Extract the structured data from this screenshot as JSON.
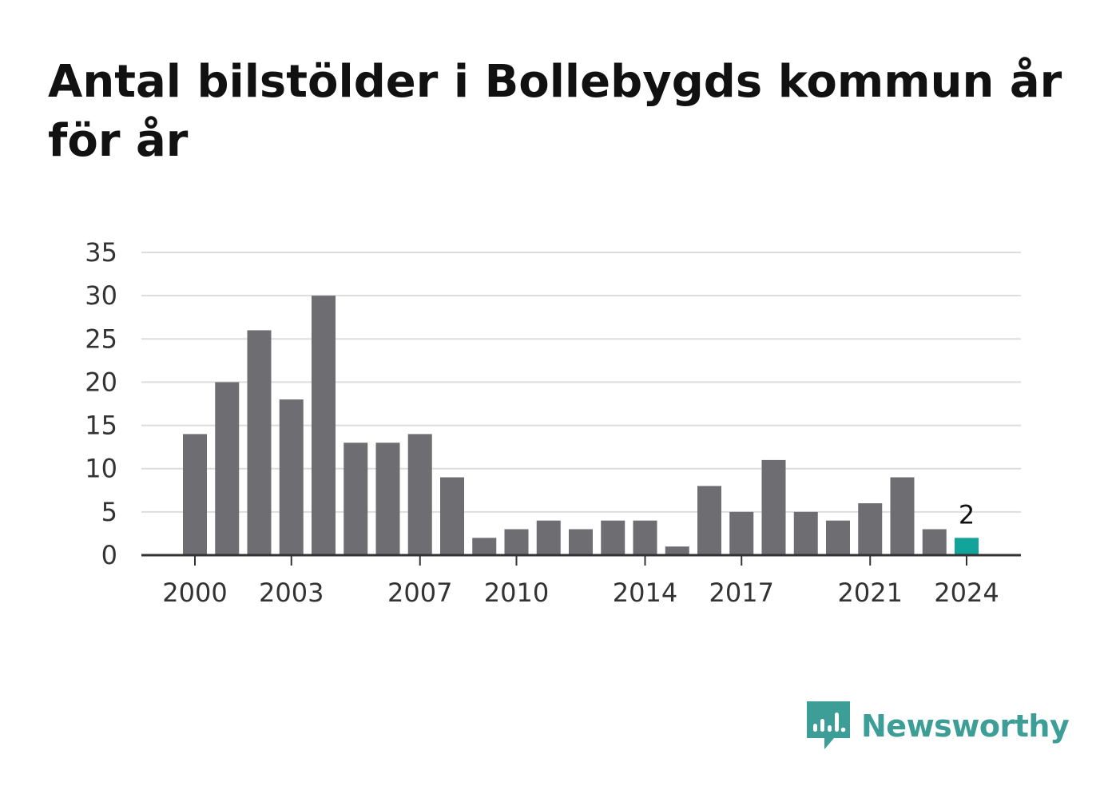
{
  "title": "Antal bilstölder i Bollebygds kommun år för år",
  "brand": {
    "name": "Newsworthy",
    "icon": "newsworthy-logo-icon",
    "color": "#3d9d97"
  },
  "colors": {
    "bar": "#6e6d72",
    "highlight": "#12a39a",
    "grid": "#dddddd",
    "axis": "#333333"
  },
  "chart_data": {
    "type": "bar",
    "title": "Antal bilstölder i Bollebygds kommun år för år",
    "xlabel": "",
    "ylabel": "",
    "categories": [
      "2000",
      "2001",
      "2002",
      "2003",
      "2004",
      "2005",
      "2006",
      "2007",
      "2008",
      "2009",
      "2010",
      "2011",
      "2012",
      "2013",
      "2014",
      "2015",
      "2016",
      "2017",
      "2018",
      "2019",
      "2020",
      "2021",
      "2022",
      "2023",
      "2024"
    ],
    "values": [
      14,
      20,
      26,
      18,
      30,
      13,
      13,
      14,
      9,
      2,
      3,
      4,
      3,
      4,
      4,
      1,
      8,
      5,
      11,
      5,
      4,
      6,
      9,
      3,
      2
    ],
    "ylim": [
      0,
      35
    ],
    "yticks": [
      0,
      5,
      10,
      15,
      20,
      25,
      30,
      35
    ],
    "xtick_labels": [
      "2000",
      "2003",
      "2007",
      "2010",
      "2014",
      "2017",
      "2021",
      "2024"
    ],
    "highlight": {
      "category": "2024",
      "label": "2"
    },
    "grid": true
  }
}
